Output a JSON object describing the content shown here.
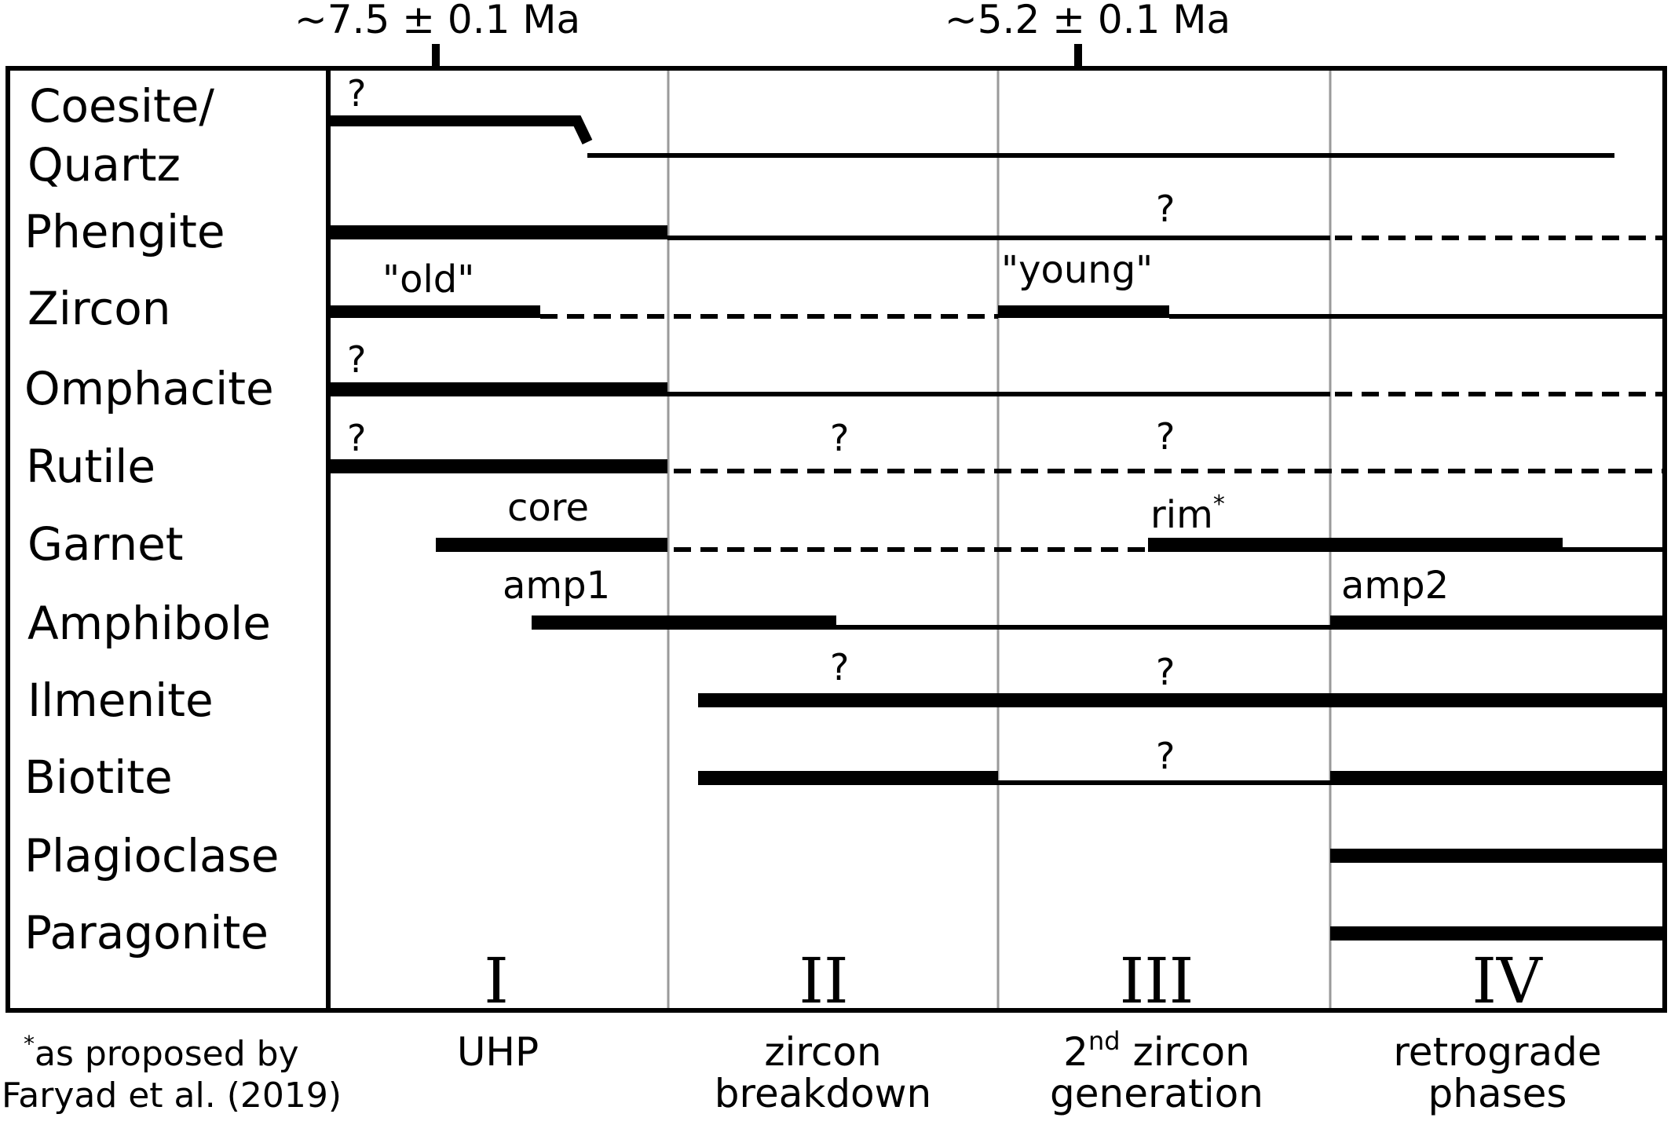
{
  "ages": [
    {
      "text": "~7.5 ± 0.1 Ma"
    },
    {
      "text": "~5.2 ± 0.1 Ma"
    }
  ],
  "minerals": [
    {
      "name": "Coesite/"
    },
    {
      "name": "Quartz"
    },
    {
      "name": "Phengite"
    },
    {
      "name": "Zircon"
    },
    {
      "name": "Omphacite"
    },
    {
      "name": "Rutile"
    },
    {
      "name": "Garnet"
    },
    {
      "name": "Amphibole"
    },
    {
      "name": "Ilmenite"
    },
    {
      "name": "Biotite"
    },
    {
      "name": "Plagioclase"
    },
    {
      "name": "Paragonite"
    }
  ],
  "annotations": {
    "question_mark": "?",
    "zircon_old": "\"old\"",
    "zircon_young": "\"young\"",
    "garnet_core": "core",
    "garnet_rim": "rim",
    "garnet_rim_mark": "*",
    "amphibole_first": "amp1",
    "amphibole_second": "amp2"
  },
  "stages": [
    {
      "numeral": "I",
      "name_lines": [
        "UHP"
      ]
    },
    {
      "numeral": "II",
      "name_lines": [
        "zircon",
        "breakdown"
      ]
    },
    {
      "numeral": "III",
      "name_lines": [
        "2",
        "nd",
        " zircon",
        "generation"
      ]
    },
    {
      "numeral": "IV",
      "name_lines": [
        "retrograde",
        "phases"
      ]
    }
  ],
  "footnote": {
    "mark": "*",
    "line1": "as proposed by",
    "line2": "Faryad et al. (2019)"
  }
}
